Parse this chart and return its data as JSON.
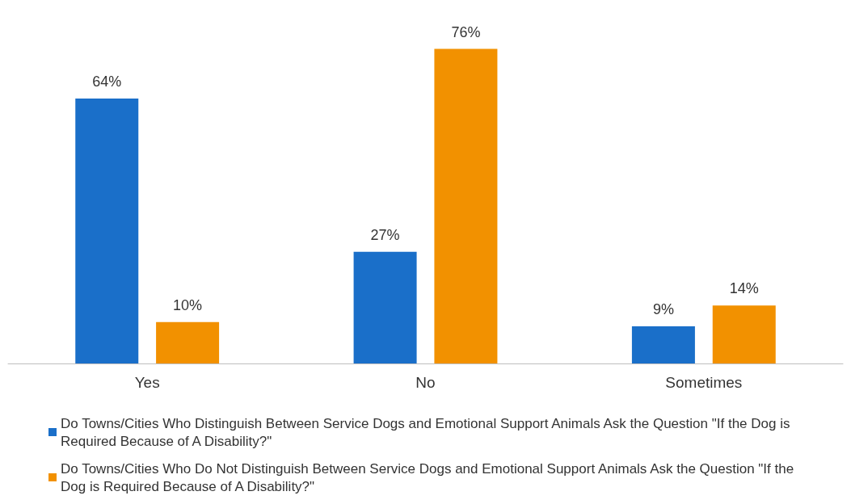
{
  "chart_data": {
    "type": "bar",
    "categories": [
      "Yes",
      "No",
      "Sometimes"
    ],
    "series": [
      {
        "name": "Do Towns/Cities Who Distinguish Between Service Dogs and Emotional Support Animals Ask the Question \"If the Dog is Required Because of A Disability?\"",
        "color": "#1a6fc9",
        "values": [
          64,
          27,
          9
        ],
        "value_labels": [
          "64%",
          "27%",
          "9%"
        ]
      },
      {
        "name": "Do Towns/Cities Who Do Not Distinguish Between Service Dogs and Emotional Support Animals Ask the Question \"If the Dog is Required Because of A Disability?\"",
        "color": "#f29100",
        "values": [
          10,
          76,
          14
        ],
        "value_labels": [
          "10%",
          "76%",
          "14%"
        ]
      }
    ],
    "legend": "bottom"
  }
}
